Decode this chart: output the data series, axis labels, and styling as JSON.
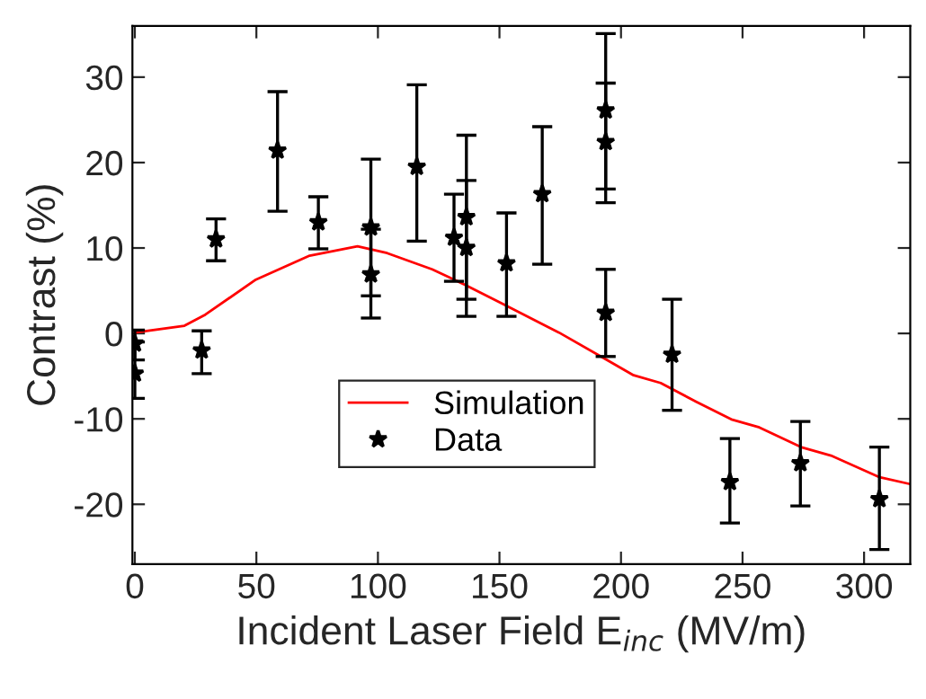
{
  "chart_data": {
    "type": "scatter",
    "xlabel": "Incident Laser Field E$_{inc}$ (MV/m)",
    "ylabel": "Contrast (%)",
    "xlim": [
      -1,
      319
    ],
    "ylim": [
      -27,
      36
    ],
    "xticks": [
      0,
      50,
      100,
      150,
      200,
      250,
      300
    ],
    "yticks": [
      -20,
      -10,
      0,
      10,
      20,
      30
    ],
    "grid": false,
    "legend": "bottom",
    "series": [
      {
        "name": "Simulation",
        "type": "line",
        "color": "#ff0000",
        "marker": "none",
        "line_style": "solid",
        "x": [
          0,
          20.4,
          29,
          49.8,
          71.9,
          91.6,
          103.8,
          122.3,
          135.8,
          151,
          174.5,
          193,
          205.2,
          216.3,
          231,
          245.8,
          256.9,
          274,
          286.4,
          306,
          318.4
        ],
        "values": [
          0.1,
          0.9,
          2.2,
          6.3,
          9.1,
          10.2,
          9.4,
          7.5,
          5.7,
          3.5,
          0.1,
          -2.9,
          -4.9,
          -5.8,
          -8.0,
          -10.1,
          -11.0,
          -13.3,
          -14.3,
          -16.8,
          -17.6
        ]
      },
      {
        "name": "Data",
        "color": "#000000",
        "marker": "star",
        "x": [
          0,
          0,
          27.5,
          33.4,
          58.7,
          75.5,
          97.1,
          97.1,
          116,
          131.3,
          136.4,
          136.4,
          152.9,
          167.6,
          193.7,
          193.7,
          193.7,
          221,
          244.8,
          273.8,
          306.3
        ],
        "values": [
          -1.2,
          -4.7,
          -2.0,
          11.0,
          21.4,
          13.0,
          12.4,
          6.9,
          19.5,
          11.2,
          13.6,
          10.0,
          8.2,
          16.3,
          26.1,
          22.4,
          2.4,
          -2.5,
          -17.4,
          -15.2,
          -19.4
        ],
        "errors": [
          [
            -3.1,
            0.4
          ],
          [
            -7.6,
            -1.0
          ],
          [
            -4.7,
            0.3
          ],
          [
            8.5,
            13.4
          ],
          [
            14.3,
            28.3
          ],
          [
            9.9,
            16.0
          ],
          [
            4.4,
            20.4
          ],
          [
            1.8,
            12.2
          ],
          [
            10.8,
            29.1
          ],
          [
            6.1,
            16.3
          ],
          [
            4.0,
            23.2
          ],
          [
            2.0,
            17.9
          ],
          [
            2.0,
            14.1
          ],
          [
            8.1,
            24.2
          ],
          [
            16.9,
            35.1
          ],
          [
            15.3,
            29.3
          ],
          [
            -2.7,
            7.5
          ],
          [
            -9.0,
            4.0
          ],
          [
            -22.2,
            -12.3
          ],
          [
            -20.2,
            -10.3
          ],
          [
            -25.3,
            -13.3
          ]
        ]
      }
    ]
  }
}
